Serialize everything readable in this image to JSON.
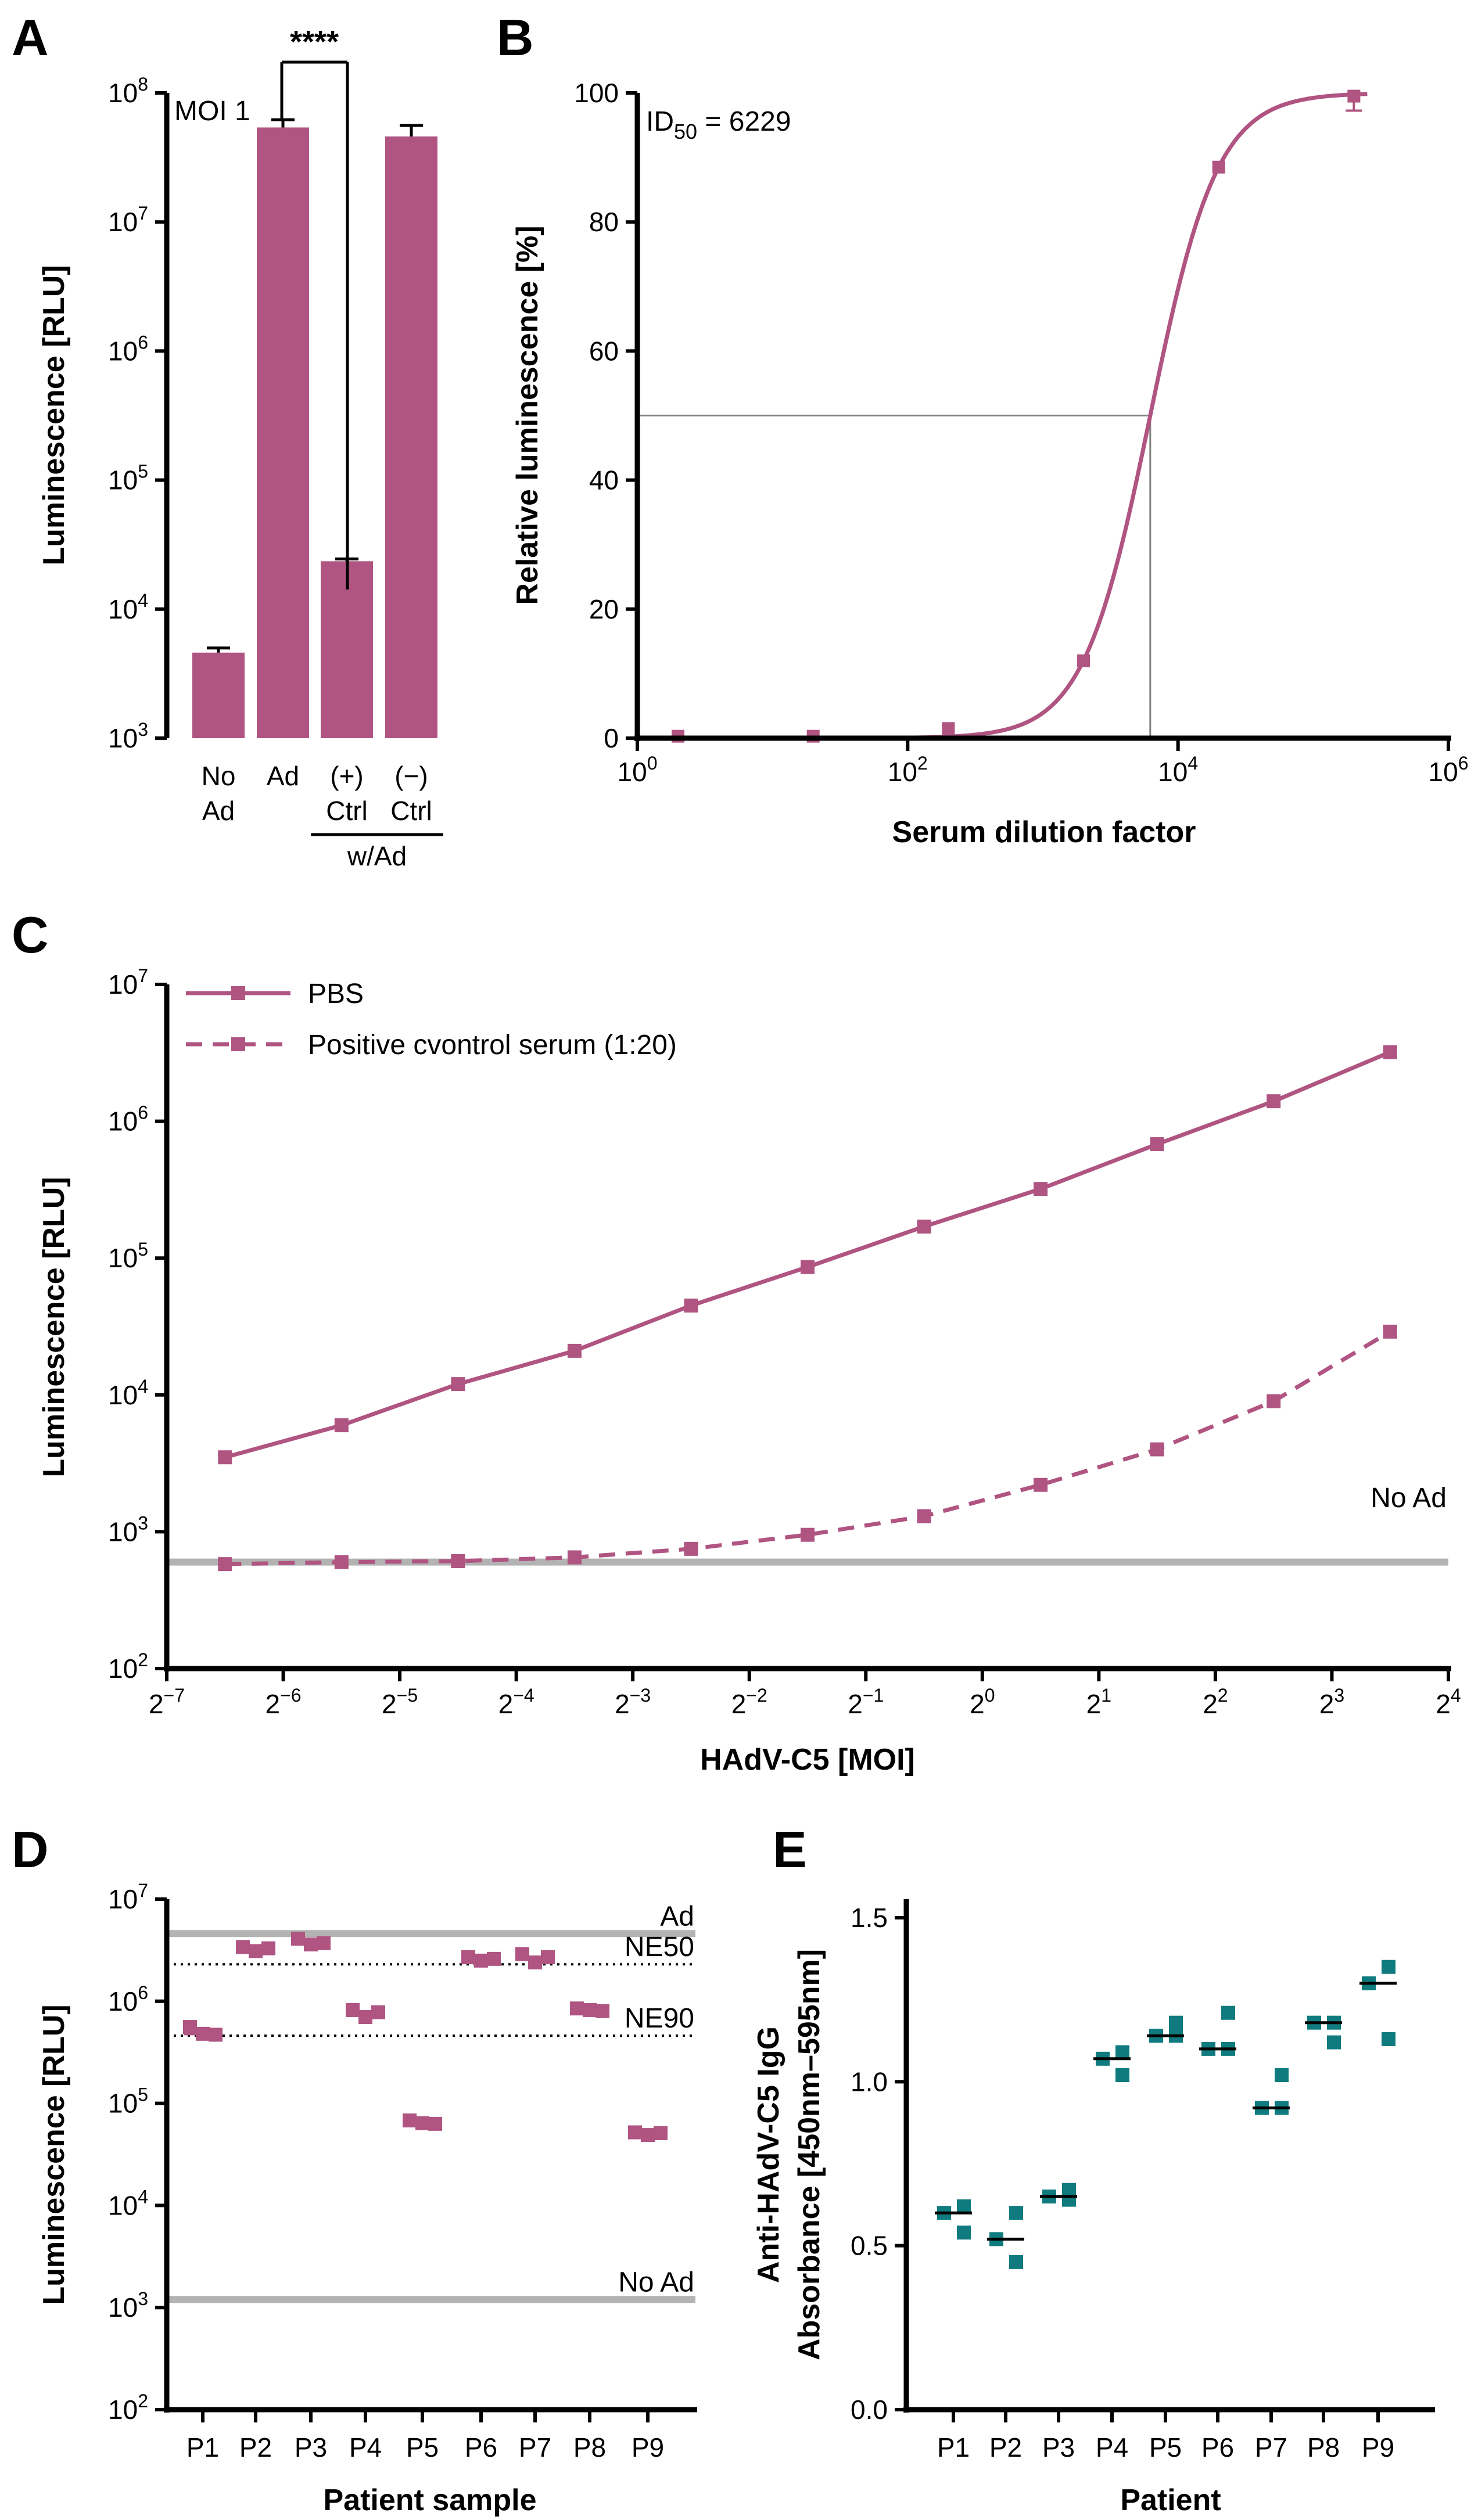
{
  "colors": {
    "magenta": "#b05482",
    "teal": "#0f7b7e",
    "gray_line": "#b3b3b3",
    "axis": "#000000"
  },
  "chart_data": [
    {
      "id": "A",
      "type": "bar",
      "panel_label": "A",
      "annotation": "MOI 1",
      "significance": "****",
      "ylabel": "Luminescence [RLU]",
      "yscale": "log10",
      "ylim": [
        1000,
        100000000
      ],
      "yticks": [
        {
          "value": 1000,
          "base": "10",
          "exp": "3"
        },
        {
          "value": 10000,
          "base": "10",
          "exp": "4"
        },
        {
          "value": 100000,
          "base": "10",
          "exp": "5"
        },
        {
          "value": 1000000,
          "base": "10",
          "exp": "6"
        },
        {
          "value": 10000000,
          "base": "10",
          "exp": "7"
        },
        {
          "value": 100000000,
          "base": "10",
          "exp": "8"
        }
      ],
      "categories": [
        {
          "line1": "No",
          "line2": "Ad"
        },
        {
          "line1": "Ad",
          "line2": ""
        },
        {
          "line1": "(+)",
          "line2": "Ctrl"
        },
        {
          "line1": "(−)",
          "line2": "Ctrl"
        }
      ],
      "group_label": "w/Ad",
      "values": [
        4600,
        54000000,
        23500,
        46000000
      ],
      "errors_upper": [
        5000,
        62000000,
        24500,
        56000000
      ]
    },
    {
      "id": "B",
      "type": "line",
      "panel_label": "B",
      "annotation_main": "ID",
      "annotation_sub": "50",
      "annotation_rest": " = 6229",
      "xlabel": "Serum dilution factor",
      "ylabel": "Relative luminescence [%]",
      "xscale": "log10",
      "xlim": [
        1,
        1000000
      ],
      "ylim": [
        0,
        100
      ],
      "xticks": [
        {
          "value": 1,
          "base": "10",
          "exp": "0"
        },
        {
          "value": 100,
          "base": "10",
          "exp": "2"
        },
        {
          "value": 10000,
          "base": "10",
          "exp": "4"
        },
        {
          "value": 1000000,
          "base": "10",
          "exp": "6"
        }
      ],
      "yticks": [
        "0",
        "20",
        "40",
        "60",
        "80",
        "100"
      ],
      "ytick_values": [
        0,
        20,
        40,
        60,
        80,
        100
      ],
      "id50": 6229,
      "hill_slope": 1.75,
      "points": [
        {
          "x": 2,
          "y": 0.3
        },
        {
          "x": 20,
          "y": 0.3
        },
        {
          "x": 200,
          "y": 1.5
        },
        {
          "x": 2000,
          "y": 12
        },
        {
          "x": 20000,
          "y": 88.5
        },
        {
          "x": 200000,
          "y": 99.5
        }
      ]
    },
    {
      "id": "C",
      "type": "line",
      "panel_label": "C",
      "xlabel": "HAdV-C5 [MOI]",
      "ylabel": "Luminescence [RLU]",
      "xscale": "log2",
      "yscale": "log10",
      "xlim_exp": [
        -7,
        4
      ],
      "ylim": [
        100,
        10000000
      ],
      "xticks": [
        {
          "exp_value": -7,
          "base": "2",
          "exp": "−7"
        },
        {
          "exp_value": -6,
          "base": "2",
          "exp": "−6"
        },
        {
          "exp_value": -5,
          "base": "2",
          "exp": "−5"
        },
        {
          "exp_value": -4,
          "base": "2",
          "exp": "−4"
        },
        {
          "exp_value": -3,
          "base": "2",
          "exp": "−3"
        },
        {
          "exp_value": -2,
          "base": "2",
          "exp": "−2"
        },
        {
          "exp_value": -1,
          "base": "2",
          "exp": "−1"
        },
        {
          "exp_value": 0,
          "base": "2",
          "exp": "0"
        },
        {
          "exp_value": 1,
          "base": "2",
          "exp": "1"
        },
        {
          "exp_value": 2,
          "base": "2",
          "exp": "2"
        },
        {
          "exp_value": 3,
          "base": "2",
          "exp": "3"
        },
        {
          "exp_value": 4,
          "base": "2",
          "exp": "4"
        }
      ],
      "yticks": [
        {
          "value": 100,
          "base": "10",
          "exp": "2"
        },
        {
          "value": 1000,
          "base": "10",
          "exp": "3"
        },
        {
          "value": 10000,
          "base": "10",
          "exp": "4"
        },
        {
          "value": 100000,
          "base": "10",
          "exp": "5"
        },
        {
          "value": 1000000,
          "base": "10",
          "exp": "6"
        },
        {
          "value": 10000000,
          "base": "10",
          "exp": "7"
        }
      ],
      "x_exponents": [
        -6.5,
        -5.5,
        -4.5,
        -3.5,
        -2.5,
        -1.5,
        -0.5,
        0.5,
        1.5,
        2.5,
        3.5
      ],
      "series": [
        {
          "name": "PBS",
          "style": "solid",
          "values": [
            3500,
            6000,
            12000,
            21000,
            45000,
            86000,
            170000,
            320000,
            680000,
            1400000,
            3200000
          ]
        },
        {
          "name": "Positive cvontrol serum (1:20)",
          "style": "dashed",
          "values": [
            580,
            600,
            610,
            650,
            750,
            950,
            1300,
            2200,
            4000,
            9000,
            29000
          ]
        }
      ],
      "reference_line": {
        "label": "No Ad",
        "value": 600
      }
    },
    {
      "id": "D",
      "type": "scatter",
      "panel_label": "D",
      "xlabel": "Patient sample",
      "ylabel": "Luminescence [RLU]",
      "yscale": "log10",
      "ylim": [
        100,
        10000000
      ],
      "yticks": [
        {
          "value": 100,
          "base": "10",
          "exp": "2"
        },
        {
          "value": 1000,
          "base": "10",
          "exp": "3"
        },
        {
          "value": 10000,
          "base": "10",
          "exp": "4"
        },
        {
          "value": 100000,
          "base": "10",
          "exp": "5"
        },
        {
          "value": 1000000,
          "base": "10",
          "exp": "6"
        },
        {
          "value": 10000000,
          "base": "10",
          "exp": "7"
        }
      ],
      "categories": [
        "P1",
        "P2",
        "P3",
        "P4",
        "P5",
        "P6",
        "P7",
        "P8",
        "P9"
      ],
      "points": [
        [
          560000,
          480000,
          470000
        ],
        [
          3400000,
          3100000,
          3300000
        ],
        [
          4100000,
          3600000,
          3700000
        ],
        [
          820000,
          700000,
          780000
        ],
        [
          68000,
          64000,
          63000
        ],
        [
          2700000,
          2500000,
          2600000
        ],
        [
          2900000,
          2400000,
          2700000
        ],
        [
          850000,
          820000,
          800000
        ],
        [
          52000,
          49000,
          51000
        ]
      ],
      "medians": [
        480000,
        3300000,
        3700000,
        780000,
        64000,
        2600000,
        2700000,
        820000,
        51000
      ],
      "reference_lines": [
        {
          "label": "Ad",
          "value": 4600000,
          "style": "solid"
        },
        {
          "label": "NE50",
          "value": 2300000,
          "style": "dotted"
        },
        {
          "label": "NE90",
          "value": 460000,
          "style": "dotted"
        },
        {
          "label": "No Ad",
          "value": 1200,
          "style": "solid"
        }
      ]
    },
    {
      "id": "E",
      "type": "scatter",
      "panel_label": "E",
      "xlabel": "Patient",
      "ylabel_line1": "Anti-HAdV-C5 IgG",
      "ylabel_line2": "Absorbance [450nm–595nm]",
      "ylim": [
        0,
        1.5
      ],
      "yticks": [
        "0.0",
        "0.5",
        "1.0",
        "1.5"
      ],
      "ytick_values": [
        0,
        0.5,
        1.0,
        1.5
      ],
      "categories": [
        "P1",
        "P2",
        "P3",
        "P4",
        "P5",
        "P6",
        "P7",
        "P8",
        "P9"
      ],
      "points": [
        [
          0.62,
          0.6,
          0.54
        ],
        [
          0.6,
          0.52,
          0.45
        ],
        [
          0.67,
          0.64,
          0.65
        ],
        [
          1.09,
          1.07,
          1.02
        ],
        [
          1.18,
          1.14,
          1.14
        ],
        [
          1.21,
          1.1,
          1.1
        ],
        [
          1.02,
          0.92,
          0.92
        ],
        [
          1.18,
          1.18,
          1.12
        ],
        [
          1.35,
          1.3,
          1.13
        ]
      ],
      "medians": [
        0.6,
        0.52,
        0.65,
        1.07,
        1.14,
        1.1,
        0.92,
        1.18,
        1.3
      ]
    }
  ]
}
